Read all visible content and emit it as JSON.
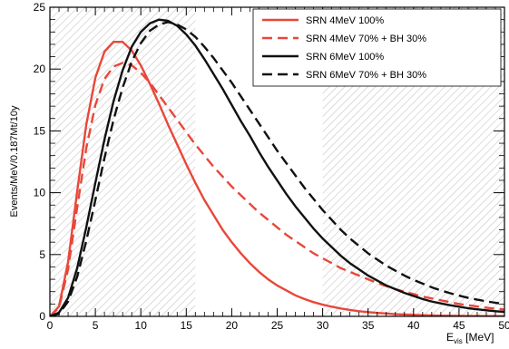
{
  "chart_data": {
    "type": "line",
    "title": "",
    "xlabel_main": "E",
    "xlabel_sub": "vis",
    "xlabel_unit": " [MeV]",
    "ylabel": "Events/MeV/0.187Mt/10y",
    "xlim": [
      0,
      50
    ],
    "ylim": [
      0,
      25
    ],
    "x_ticks": [
      "0",
      "5",
      "10",
      "15",
      "20",
      "25",
      "30",
      "35",
      "40",
      "45",
      "50"
    ],
    "y_ticks": [
      "0",
      "5",
      "10",
      "15",
      "20",
      "25"
    ],
    "hatched_regions": [
      [
        0,
        16
      ],
      [
        30,
        50
      ]
    ],
    "legend_position": "top-right",
    "grid": false,
    "x": [
      0,
      1,
      2,
      3,
      4,
      5,
      6,
      7,
      8,
      9,
      10,
      11,
      12,
      13,
      14,
      15,
      16,
      17,
      18,
      19,
      20,
      21,
      22,
      23,
      24,
      25,
      26,
      27,
      28,
      29,
      30,
      31,
      32,
      33,
      34,
      35,
      36,
      37,
      38,
      39,
      40,
      41,
      42,
      43,
      44,
      45,
      46,
      47,
      48,
      49,
      50
    ],
    "series": [
      {
        "name": "SRN 4MeV 100%",
        "color": "#e8473a",
        "dash": "solid",
        "values": [
          0,
          0.8,
          4.4,
          10.1,
          15.5,
          19.3,
          21.4,
          22.2,
          22.2,
          21.5,
          20.3,
          18.8,
          17.2,
          15.5,
          13.9,
          12.3,
          10.8,
          9.4,
          8.2,
          7.0,
          6.0,
          5.1,
          4.3,
          3.6,
          3.0,
          2.5,
          2.1,
          1.7,
          1.4,
          1.15,
          0.95,
          0.78,
          0.64,
          0.52,
          0.42,
          0.34,
          0.28,
          0.23,
          0.18,
          0.15,
          0.12,
          0.1,
          0.08,
          0.06,
          0.05,
          0.04,
          0.03,
          0.03,
          0.02,
          0.02,
          0.01
        ]
      },
      {
        "name": "SRN 4MeV 70% + BH 30%",
        "color": "#e8473a",
        "dash": "dashed",
        "values": [
          0,
          0.7,
          3.8,
          8.8,
          13.6,
          17.1,
          19.2,
          20.2,
          20.5,
          20.3,
          19.7,
          18.9,
          17.9,
          16.9,
          15.9,
          14.9,
          13.9,
          13.0,
          12.1,
          11.3,
          10.5,
          9.8,
          9.1,
          8.4,
          7.8,
          7.2,
          6.6,
          6.1,
          5.6,
          5.1,
          4.7,
          4.3,
          3.9,
          3.6,
          3.3,
          3.0,
          2.7,
          2.45,
          2.2,
          2.0,
          1.8,
          1.6,
          1.45,
          1.3,
          1.15,
          1.0,
          0.9,
          0.8,
          0.7,
          0.62,
          0.55
        ]
      },
      {
        "name": "SRN 6MeV 100%",
        "color": "#111111",
        "dash": "solid",
        "values": [
          0,
          0.3,
          1.5,
          3.9,
          7.2,
          10.8,
          14.3,
          17.4,
          19.9,
          21.8,
          23.0,
          23.7,
          24.0,
          23.9,
          23.5,
          22.8,
          21.9,
          20.8,
          19.6,
          18.4,
          17.1,
          15.8,
          14.6,
          13.3,
          12.1,
          11.0,
          9.9,
          8.9,
          8.0,
          7.1,
          6.3,
          5.6,
          4.9,
          4.3,
          3.8,
          3.3,
          2.9,
          2.5,
          2.2,
          1.9,
          1.65,
          1.4,
          1.2,
          1.05,
          0.9,
          0.78,
          0.66,
          0.57,
          0.49,
          0.42,
          0.36
        ]
      },
      {
        "name": "SRN 6MeV 70% + BH 30%",
        "color": "#111111",
        "dash": "dashed",
        "values": [
          0,
          0.2,
          1.2,
          3.2,
          6.1,
          9.4,
          12.8,
          15.9,
          18.5,
          20.6,
          22.1,
          23.1,
          23.6,
          23.8,
          23.6,
          23.2,
          22.6,
          21.8,
          20.9,
          19.9,
          18.9,
          17.8,
          16.7,
          15.6,
          14.5,
          13.4,
          12.4,
          11.4,
          10.4,
          9.5,
          8.6,
          7.8,
          7.0,
          6.3,
          5.7,
          5.1,
          4.6,
          4.1,
          3.7,
          3.3,
          2.95,
          2.65,
          2.35,
          2.1,
          1.88,
          1.68,
          1.5,
          1.35,
          1.22,
          1.1,
          1.0
        ]
      }
    ]
  }
}
